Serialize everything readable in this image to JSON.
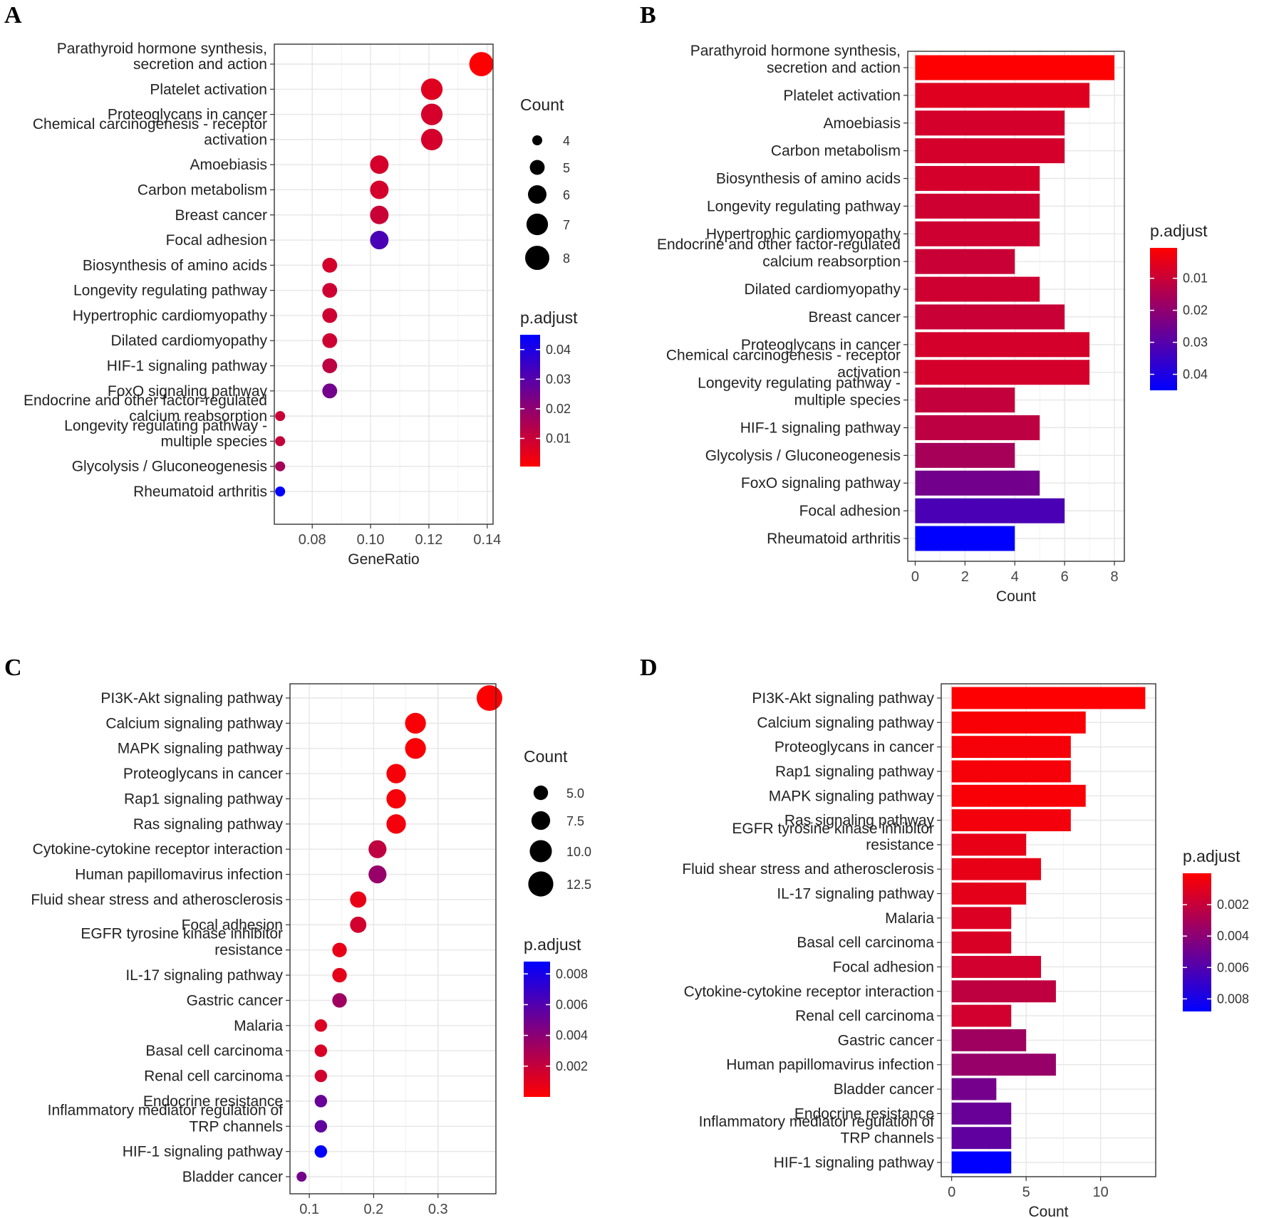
{
  "figure": {
    "colors": {
      "low": "#ff0000",
      "high": "#0000ff"
    },
    "chart_data": [
      {
        "panel": "A",
        "type": "scatter",
        "xlabel": "GeneRatio",
        "xlim": [
          0.067,
          0.142
        ],
        "xticks": [
          "0.08",
          "0.10",
          "0.12",
          "0.14"
        ],
        "xtick_values": [
          0.08,
          0.1,
          0.12,
          0.14
        ],
        "size_legend_title": "Count",
        "size_legend": [
          "4",
          "5",
          "6",
          "7",
          "8"
        ],
        "size_legend_values": [
          4,
          5,
          6,
          7,
          8
        ],
        "size_range": [
          4,
          8
        ],
        "color_legend_title": "p.adjust",
        "color_legend": [
          "0.04",
          "0.03",
          "0.02",
          "0.01"
        ],
        "color_legend_values": [
          0.04,
          0.03,
          0.02,
          0.01
        ],
        "color_range": [
          0.0005,
          0.045
        ],
        "categories": [
          {
            "lines": [
              "Parathyroid hormone synthesis,",
              "secretion and action"
            ],
            "x": 0.138,
            "count": 8,
            "padj": 0.0006
          },
          {
            "lines": [
              "Platelet activation"
            ],
            "x": 0.121,
            "count": 7,
            "padj": 0.006
          },
          {
            "lines": [
              "Proteoglycans in cancer"
            ],
            "x": 0.121,
            "count": 7,
            "padj": 0.008
          },
          {
            "lines": [
              "Chemical carcinogenesis - receptor",
              "activation"
            ],
            "x": 0.121,
            "count": 7,
            "padj": 0.008
          },
          {
            "lines": [
              "Amoebiasis"
            ],
            "x": 0.103,
            "count": 6,
            "padj": 0.008
          },
          {
            "lines": [
              "Carbon metabolism"
            ],
            "x": 0.103,
            "count": 6,
            "padj": 0.008
          },
          {
            "lines": [
              "Breast cancer"
            ],
            "x": 0.103,
            "count": 6,
            "padj": 0.01
          },
          {
            "lines": [
              "Focal adhesion"
            ],
            "x": 0.103,
            "count": 6,
            "padj": 0.032
          },
          {
            "lines": [
              "Biosynthesis of amino acids"
            ],
            "x": 0.086,
            "count": 5,
            "padj": 0.008
          },
          {
            "lines": [
              "Longevity regulating pathway"
            ],
            "x": 0.086,
            "count": 5,
            "padj": 0.009
          },
          {
            "lines": [
              "Hypertrophic cardiomyopathy"
            ],
            "x": 0.086,
            "count": 5,
            "padj": 0.009
          },
          {
            "lines": [
              "Dilated cardiomyopathy"
            ],
            "x": 0.086,
            "count": 5,
            "padj": 0.009
          },
          {
            "lines": [
              "HIF-1 signaling pathway"
            ],
            "x": 0.086,
            "count": 5,
            "padj": 0.012
          },
          {
            "lines": [
              "FoxO signaling pathway"
            ],
            "x": 0.086,
            "count": 5,
            "padj": 0.025
          },
          {
            "lines": [
              "Endocrine and other factor-regulated",
              "calcium reabsorption"
            ],
            "x": 0.069,
            "count": 4,
            "padj": 0.01
          },
          {
            "lines": [
              "Longevity regulating pathway -",
              "multiple species"
            ],
            "x": 0.069,
            "count": 4,
            "padj": 0.011
          },
          {
            "lines": [
              "Glycolysis / Gluconeogenesis"
            ],
            "x": 0.069,
            "count": 4,
            "padj": 0.016
          },
          {
            "lines": [
              "Rheumatoid arthritis"
            ],
            "x": 0.069,
            "count": 4,
            "padj": 0.045
          }
        ]
      },
      {
        "panel": "B",
        "type": "bar",
        "xlabel": "Count",
        "xlim": [
          -0.3,
          8.4
        ],
        "xticks": [
          "0",
          "2",
          "4",
          "6",
          "8"
        ],
        "xtick_values": [
          0,
          2,
          4,
          6,
          8
        ],
        "color_legend_title": "p.adjust",
        "color_legend": [
          "0.01",
          "0.02",
          "0.03",
          "0.04"
        ],
        "color_legend_values": [
          0.01,
          0.02,
          0.03,
          0.04
        ],
        "color_range": [
          0.0005,
          0.045
        ],
        "categories": [
          {
            "lines": [
              "Parathyroid hormone synthesis,",
              "secretion and action"
            ],
            "value": 8,
            "padj": 0.0006
          },
          {
            "lines": [
              "Platelet activation"
            ],
            "value": 7,
            "padj": 0.006
          },
          {
            "lines": [
              "Amoebiasis"
            ],
            "value": 6,
            "padj": 0.008
          },
          {
            "lines": [
              "Carbon metabolism"
            ],
            "value": 6,
            "padj": 0.008
          },
          {
            "lines": [
              "Biosynthesis of amino acids"
            ],
            "value": 5,
            "padj": 0.008
          },
          {
            "lines": [
              "Longevity regulating pathway"
            ],
            "value": 5,
            "padj": 0.009
          },
          {
            "lines": [
              "Hypertrophic cardiomyopathy"
            ],
            "value": 5,
            "padj": 0.009
          },
          {
            "lines": [
              "Endocrine and other factor-regulated",
              "calcium reabsorption"
            ],
            "value": 4,
            "padj": 0.01
          },
          {
            "lines": [
              "Dilated cardiomyopathy"
            ],
            "value": 5,
            "padj": 0.009
          },
          {
            "lines": [
              "Breast cancer"
            ],
            "value": 6,
            "padj": 0.01
          },
          {
            "lines": [
              "Proteoglycans in cancer"
            ],
            "value": 7,
            "padj": 0.008
          },
          {
            "lines": [
              "Chemical carcinogenesis - receptor",
              "activation"
            ],
            "value": 7,
            "padj": 0.008
          },
          {
            "lines": [
              "Longevity regulating pathway -",
              "multiple species"
            ],
            "value": 4,
            "padj": 0.011
          },
          {
            "lines": [
              "HIF-1 signaling pathway"
            ],
            "value": 5,
            "padj": 0.012
          },
          {
            "lines": [
              "Glycolysis / Gluconeogenesis"
            ],
            "value": 4,
            "padj": 0.016
          },
          {
            "lines": [
              "FoxO signaling pathway"
            ],
            "value": 5,
            "padj": 0.025
          },
          {
            "lines": [
              "Focal adhesion"
            ],
            "value": 6,
            "padj": 0.032
          },
          {
            "lines": [
              "Rheumatoid arthritis"
            ],
            "value": 4,
            "padj": 0.045
          }
        ]
      },
      {
        "panel": "C",
        "type": "scatter",
        "xlabel": "GeneRatio",
        "xlim": [
          0.07,
          0.39
        ],
        "xticks": [
          "0.1",
          "0.2",
          "0.3"
        ],
        "xtick_values": [
          0.1,
          0.2,
          0.3
        ],
        "size_legend_title": "Count",
        "size_legend": [
          "5.0",
          "7.5",
          "10.0",
          "12.5"
        ],
        "size_legend_values": [
          5.0,
          7.5,
          10.0,
          12.5
        ],
        "size_range": [
          3,
          13
        ],
        "color_legend_title": "p.adjust",
        "color_legend": [
          "0.008",
          "0.006",
          "0.004",
          "0.002"
        ],
        "color_legend_values": [
          0.008,
          0.006,
          0.004,
          0.002
        ],
        "color_range": [
          0.0,
          0.0088
        ],
        "categories": [
          {
            "lines": [
              "PI3K-Akt signaling pathway"
            ],
            "x": 0.38,
            "count": 13,
            "padj": 2e-05
          },
          {
            "lines": [
              "Calcium signaling pathway"
            ],
            "x": 0.265,
            "count": 9,
            "padj": 0.0002
          },
          {
            "lines": [
              "MAPK signaling pathway"
            ],
            "x": 0.265,
            "count": 9,
            "padj": 0.0002
          },
          {
            "lines": [
              "Proteoglycans in cancer"
            ],
            "x": 0.235,
            "count": 8,
            "padj": 0.0003
          },
          {
            "lines": [
              "Rap1 signaling pathway"
            ],
            "x": 0.235,
            "count": 8,
            "padj": 0.0003
          },
          {
            "lines": [
              "Ras signaling pathway"
            ],
            "x": 0.235,
            "count": 8,
            "padj": 0.0004
          },
          {
            "lines": [
              "Cytokine-cytokine receptor interaction"
            ],
            "x": 0.206,
            "count": 7,
            "padj": 0.0022
          },
          {
            "lines": [
              "Human papillomavirus infection"
            ],
            "x": 0.206,
            "count": 7,
            "padj": 0.0036
          },
          {
            "lines": [
              "Fluid shear stress and atherosclerosis"
            ],
            "x": 0.176,
            "count": 6,
            "padj": 0.0008
          },
          {
            "lines": [
              "Focal adhesion"
            ],
            "x": 0.176,
            "count": 6,
            "padj": 0.0016
          },
          {
            "lines": [
              "EGFR tyrosine kinase inhibitor",
              "resistance"
            ],
            "x": 0.147,
            "count": 5,
            "padj": 0.0008
          },
          {
            "lines": [
              "IL-17 signaling pathway"
            ],
            "x": 0.147,
            "count": 5,
            "padj": 0.0009
          },
          {
            "lines": [
              "Gastric cancer"
            ],
            "x": 0.147,
            "count": 5,
            "padj": 0.0033
          },
          {
            "lines": [
              "Malaria"
            ],
            "x": 0.118,
            "count": 4,
            "padj": 0.0012
          },
          {
            "lines": [
              "Basal cell carcinoma"
            ],
            "x": 0.118,
            "count": 4,
            "padj": 0.0013
          },
          {
            "lines": [
              "Renal cell carcinoma"
            ],
            "x": 0.118,
            "count": 4,
            "padj": 0.0016
          },
          {
            "lines": [
              "Endocrine resistance"
            ],
            "x": 0.118,
            "count": 4,
            "padj": 0.0052
          },
          {
            "lines": [
              "Inflammatory mediator regulation of",
              "TRP channels"
            ],
            "x": 0.118,
            "count": 4,
            "padj": 0.0055
          },
          {
            "lines": [
              "HIF-1 signaling pathway"
            ],
            "x": 0.118,
            "count": 4,
            "padj": 0.0088
          },
          {
            "lines": [
              "Bladder cancer"
            ],
            "x": 0.088,
            "count": 3,
            "padj": 0.0048
          }
        ]
      },
      {
        "panel": "D",
        "type": "bar",
        "xlabel": "Count",
        "xlim": [
          -0.7,
          13.7
        ],
        "xticks": [
          "0",
          "5",
          "10"
        ],
        "xtick_values": [
          0,
          5,
          10
        ],
        "color_legend_title": "p.adjust",
        "color_legend": [
          "0.002",
          "0.004",
          "0.006",
          "0.008"
        ],
        "color_legend_values": [
          0.002,
          0.004,
          0.006,
          0.008
        ],
        "color_range": [
          0.0,
          0.0088
        ],
        "categories": [
          {
            "lines": [
              "PI3K-Akt signaling pathway"
            ],
            "value": 13,
            "padj": 2e-05
          },
          {
            "lines": [
              "Calcium signaling pathway"
            ],
            "value": 9,
            "padj": 0.0002
          },
          {
            "lines": [
              "Proteoglycans in cancer"
            ],
            "value": 8,
            "padj": 0.0003
          },
          {
            "lines": [
              "Rap1 signaling pathway"
            ],
            "value": 8,
            "padj": 0.0003
          },
          {
            "lines": [
              "MAPK signaling pathway"
            ],
            "value": 9,
            "padj": 0.0002
          },
          {
            "lines": [
              "Ras signaling pathway"
            ],
            "value": 8,
            "padj": 0.0004
          },
          {
            "lines": [
              "EGFR tyrosine kinase inhibitor",
              "resistance"
            ],
            "value": 5,
            "padj": 0.0008
          },
          {
            "lines": [
              "Fluid shear stress and atherosclerosis"
            ],
            "value": 6,
            "padj": 0.0008
          },
          {
            "lines": [
              "IL-17 signaling pathway"
            ],
            "value": 5,
            "padj": 0.0009
          },
          {
            "lines": [
              "Malaria"
            ],
            "value": 4,
            "padj": 0.0012
          },
          {
            "lines": [
              "Basal cell carcinoma"
            ],
            "value": 4,
            "padj": 0.0013
          },
          {
            "lines": [
              "Focal adhesion"
            ],
            "value": 6,
            "padj": 0.0016
          },
          {
            "lines": [
              "Cytokine-cytokine receptor interaction"
            ],
            "value": 7,
            "padj": 0.0022
          },
          {
            "lines": [
              "Renal cell carcinoma"
            ],
            "value": 4,
            "padj": 0.0016
          },
          {
            "lines": [
              "Gastric cancer"
            ],
            "value": 5,
            "padj": 0.0033
          },
          {
            "lines": [
              "Human papillomavirus infection"
            ],
            "value": 7,
            "padj": 0.0036
          },
          {
            "lines": [
              "Bladder cancer"
            ],
            "value": 3,
            "padj": 0.0048
          },
          {
            "lines": [
              "Endocrine resistance"
            ],
            "value": 4,
            "padj": 0.0052
          },
          {
            "lines": [
              "Inflammatory mediator regulation of",
              "TRP channels"
            ],
            "value": 4,
            "padj": 0.0055
          },
          {
            "lines": [
              "HIF-1 signaling pathway"
            ],
            "value": 4,
            "padj": 0.0088
          }
        ]
      }
    ]
  }
}
